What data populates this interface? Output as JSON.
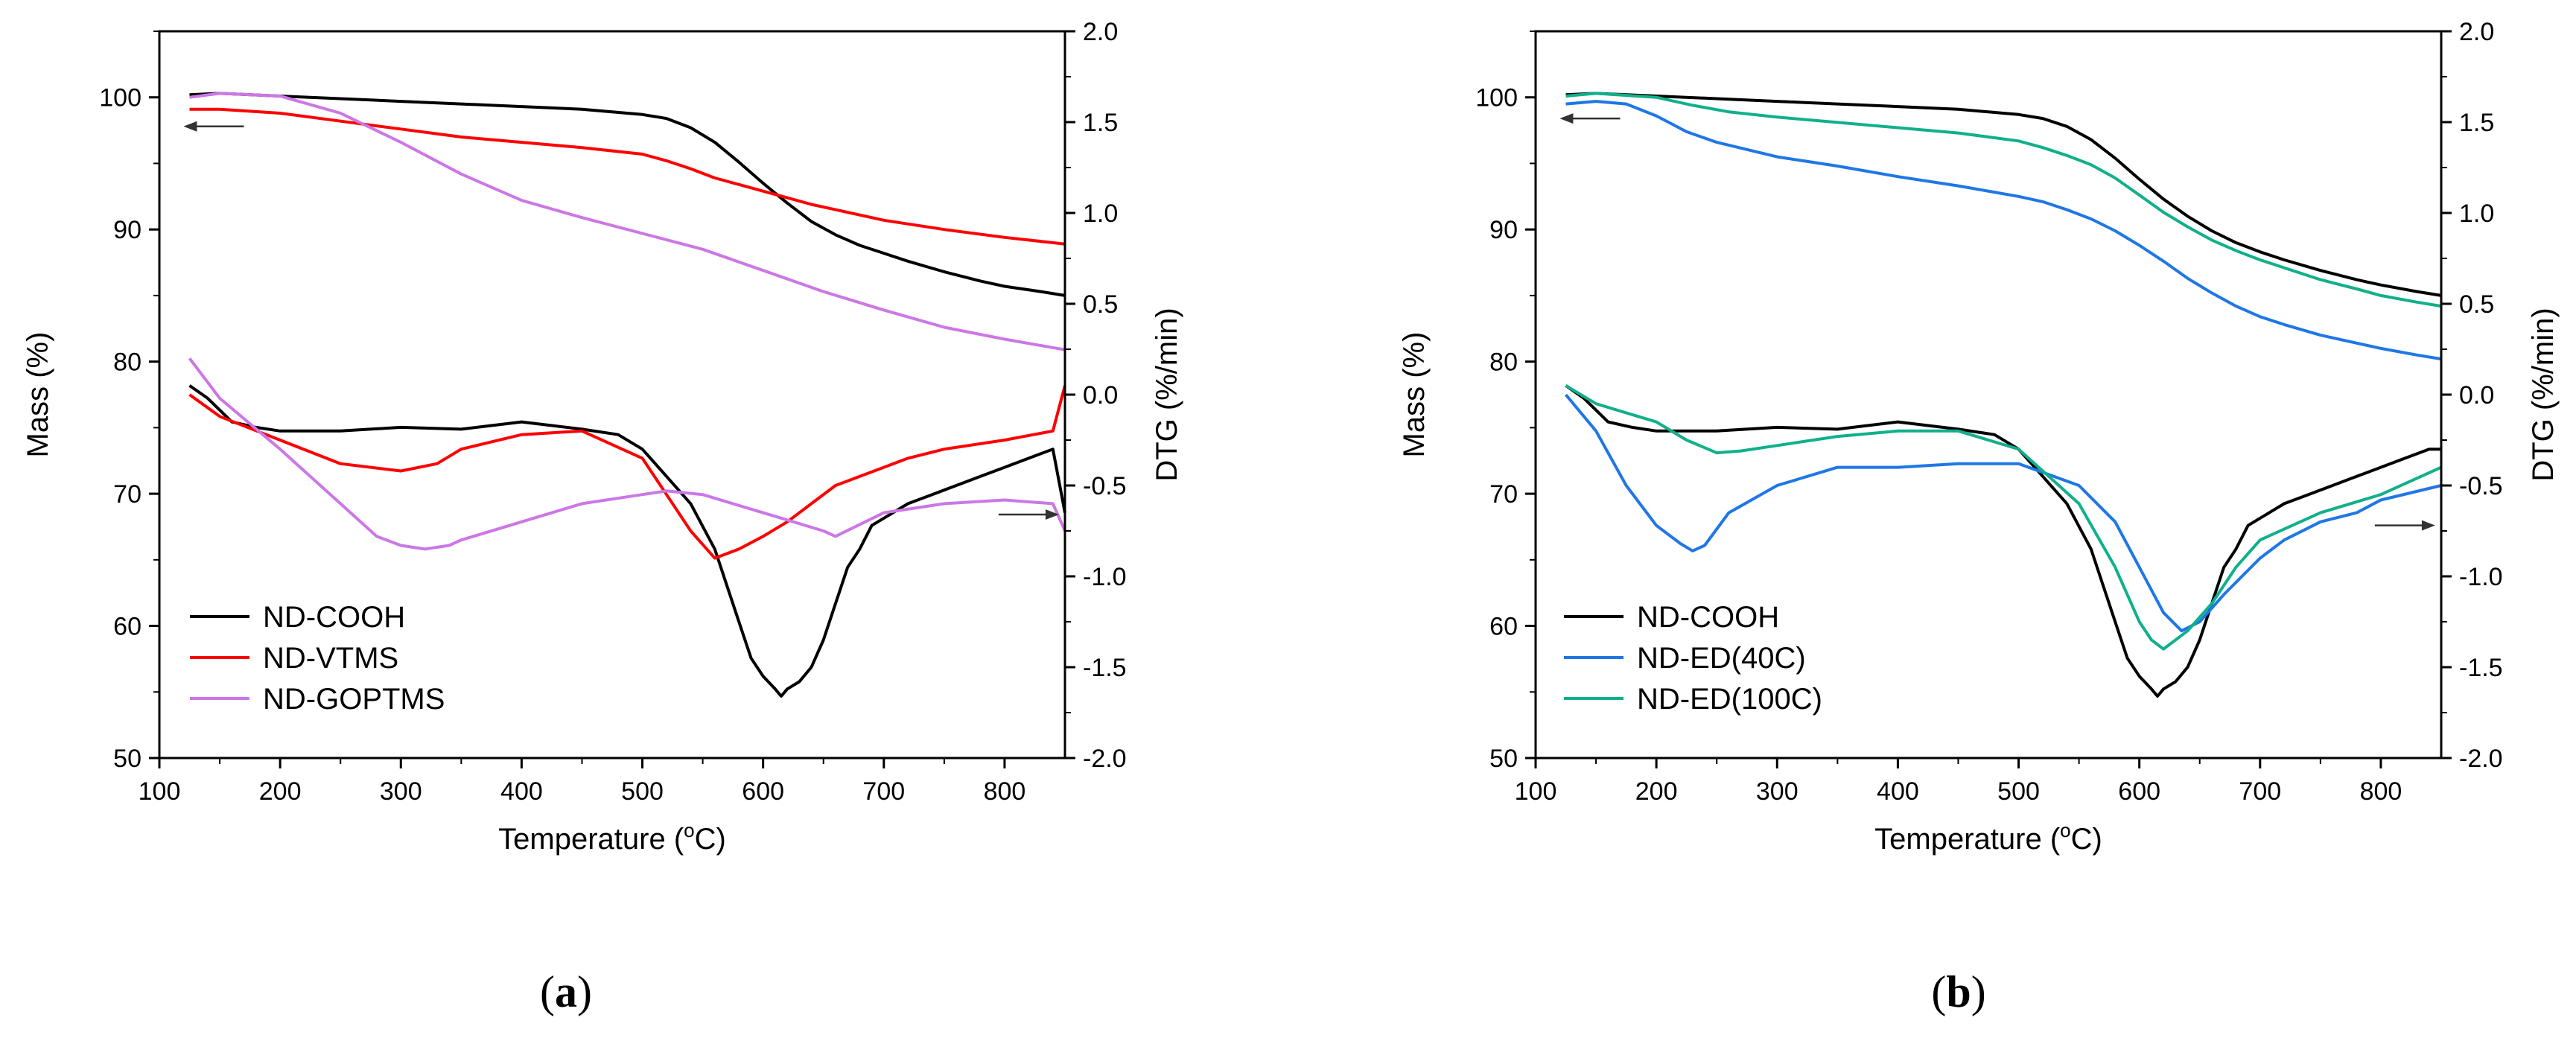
{
  "chart_data": [
    {
      "panel": "a",
      "panel_label_parts": [
        "(",
        "a",
        ")"
      ],
      "type": "line",
      "xlabel": "Temperature (°C)",
      "xlabel_parts": {
        "before": "Temperature (",
        "sup": "o",
        "after": "C)"
      },
      "ylabel_left": "Mass (%)",
      "ylabel_right": "DTG (%/min)",
      "xlim": [
        100,
        850
      ],
      "ylim_left": [
        50,
        105
      ],
      "ylim_right": [
        -2.0,
        2.0
      ],
      "x_ticks": [
        "100",
        "200",
        "300",
        "400",
        "500",
        "600",
        "700",
        "800"
      ],
      "y_left_ticks": [
        "50",
        "60",
        "70",
        "80",
        "90",
        "100"
      ],
      "y_right_ticks": [
        "-2.0",
        "-1.5",
        "-1.0",
        "-0.5",
        "0.0",
        "0.5",
        "1.0",
        "1.5",
        "2.0"
      ],
      "arrow_left": {
        "x_from": 170,
        "x_to": 120,
        "y": 97.8
      },
      "arrow_right": {
        "x_from": 795,
        "x_to": 845,
        "y": -0.66
      },
      "legend_entries": [
        "ND-COOH",
        "ND-VTMS",
        "ND-GOPTMS"
      ],
      "series": [
        {
          "name": "ND-COOH",
          "axis": "left",
          "color": "#000000",
          "x": [
            125,
            150,
            200,
            250,
            300,
            350,
            400,
            450,
            500,
            520,
            540,
            560,
            580,
            600,
            620,
            640,
            660,
            680,
            700,
            720,
            750,
            780,
            800,
            830,
            850
          ],
          "y": [
            100.2,
            100.3,
            100.1,
            99.9,
            99.7,
            99.5,
            99.3,
            99.1,
            98.7,
            98.4,
            97.7,
            96.6,
            95.1,
            93.5,
            92.0,
            90.6,
            89.6,
            88.8,
            88.2,
            87.6,
            86.8,
            86.1,
            85.7,
            85.3,
            85.0
          ]
        },
        {
          "name": "ND-VTMS",
          "axis": "left",
          "color": "#ff0000",
          "x": [
            125,
            150,
            200,
            250,
            300,
            350,
            400,
            450,
            500,
            520,
            540,
            560,
            580,
            600,
            620,
            640,
            660,
            680,
            700,
            750,
            800,
            850
          ],
          "y": [
            99.1,
            99.1,
            98.8,
            98.2,
            97.6,
            97.0,
            96.6,
            96.2,
            95.7,
            95.2,
            94.6,
            93.9,
            93.4,
            92.9,
            92.4,
            91.9,
            91.5,
            91.1,
            90.7,
            90.0,
            89.4,
            88.9
          ]
        },
        {
          "name": "ND-GOPTMS",
          "axis": "left",
          "color": "#cc77e6",
          "x": [
            125,
            150,
            200,
            250,
            300,
            350,
            400,
            450,
            500,
            550,
            600,
            650,
            700,
            750,
            800,
            850
          ],
          "y": [
            100.0,
            100.3,
            100.1,
            98.8,
            96.6,
            94.2,
            92.2,
            90.9,
            89.7,
            88.5,
            86.9,
            85.3,
            83.9,
            82.6,
            81.7,
            80.9
          ]
        },
        {
          "name": "ND-COOH",
          "axis": "right",
          "color": "#000000",
          "legend": true,
          "x": [
            125,
            140,
            160,
            180,
            200,
            250,
            300,
            350,
            400,
            450,
            480,
            500,
            520,
            540,
            560,
            570,
            580,
            590,
            600,
            610,
            615,
            620,
            630,
            640,
            650,
            660,
            670,
            680,
            690,
            700,
            720,
            740,
            760,
            780,
            800,
            820,
            840,
            850
          ],
          "y": [
            0.05,
            -0.02,
            -0.15,
            -0.18,
            -0.2,
            -0.2,
            -0.18,
            -0.19,
            -0.15,
            -0.19,
            -0.22,
            -0.3,
            -0.45,
            -0.6,
            -0.85,
            -1.05,
            -1.25,
            -1.45,
            -1.55,
            -1.62,
            -1.66,
            -1.62,
            -1.58,
            -1.5,
            -1.35,
            -1.15,
            -0.95,
            -0.85,
            -0.72,
            -0.68,
            -0.6,
            -0.55,
            -0.5,
            -0.45,
            -0.4,
            -0.35,
            -0.3,
            -0.65
          ]
        },
        {
          "name": "ND-VTMS",
          "axis": "right",
          "color": "#ff0000",
          "legend": true,
          "x": [
            125,
            150,
            200,
            250,
            300,
            330,
            350,
            400,
            450,
            500,
            520,
            540,
            560,
            580,
            600,
            620,
            640,
            660,
            680,
            700,
            720,
            750,
            800,
            840,
            850
          ],
          "y": [
            0.0,
            -0.12,
            -0.25,
            -0.38,
            -0.42,
            -0.38,
            -0.3,
            -0.22,
            -0.2,
            -0.35,
            -0.55,
            -0.75,
            -0.9,
            -0.85,
            -0.78,
            -0.7,
            -0.6,
            -0.5,
            -0.45,
            -0.4,
            -0.35,
            -0.3,
            -0.25,
            -0.2,
            0.05
          ]
        },
        {
          "name": "ND-GOPTMS",
          "axis": "right",
          "color": "#cc77e6",
          "legend": true,
          "x": [
            125,
            150,
            200,
            250,
            280,
            300,
            320,
            340,
            350,
            400,
            450,
            500,
            520,
            550,
            600,
            650,
            660,
            700,
            750,
            800,
            840,
            850
          ],
          "y": [
            0.2,
            -0.02,
            -0.3,
            -0.6,
            -0.78,
            -0.83,
            -0.85,
            -0.83,
            -0.8,
            -0.7,
            -0.6,
            -0.55,
            -0.53,
            -0.55,
            -0.65,
            -0.75,
            -0.78,
            -0.65,
            -0.6,
            -0.58,
            -0.6,
            -0.75
          ]
        }
      ]
    },
    {
      "panel": "b",
      "panel_label_parts": [
        "(",
        "b",
        ")"
      ],
      "type": "line",
      "xlabel": "Temperature (°C)",
      "xlabel_parts": {
        "before": "Temperature (",
        "sup": "o",
        "after": "C)"
      },
      "ylabel_left": "Mass (%)",
      "ylabel_right": "DTG (%/min)",
      "xlim": [
        100,
        850
      ],
      "ylim_left": [
        50,
        105
      ],
      "ylim_right": [
        -2.0,
        2.0
      ],
      "x_ticks": [
        "100",
        "200",
        "300",
        "400",
        "500",
        "600",
        "700",
        "800"
      ],
      "y_left_ticks": [
        "50",
        "60",
        "70",
        "80",
        "90",
        "100"
      ],
      "y_right_ticks": [
        "-2.0",
        "-1.5",
        "-1.0",
        "-0.5",
        "0.0",
        "0.5",
        "1.0",
        "1.5",
        "2.0"
      ],
      "arrow_left": {
        "x_from": 170,
        "x_to": 120,
        "y": 98.4
      },
      "arrow_right": {
        "x_from": 795,
        "x_to": 845,
        "y": -0.72
      },
      "legend_entries": [
        "ND-COOH",
        "ND-ED(40C)",
        "ND-ED(100C)"
      ],
      "series": [
        {
          "name": "ND-COOH",
          "axis": "left",
          "color": "#000000",
          "x": [
            125,
            150,
            200,
            250,
            300,
            350,
            400,
            450,
            500,
            520,
            540,
            560,
            580,
            600,
            620,
            640,
            660,
            680,
            700,
            720,
            750,
            780,
            800,
            830,
            850
          ],
          "y": [
            100.2,
            100.3,
            100.1,
            99.9,
            99.7,
            99.5,
            99.3,
            99.1,
            98.7,
            98.4,
            97.8,
            96.8,
            95.4,
            93.8,
            92.3,
            91.0,
            89.9,
            89.0,
            88.3,
            87.7,
            86.9,
            86.2,
            85.8,
            85.3,
            85.0
          ]
        },
        {
          "name": "ND-ED(40C)",
          "axis": "left",
          "color": "#1f77e6",
          "x": [
            125,
            150,
            175,
            200,
            225,
            250,
            300,
            350,
            400,
            450,
            500,
            520,
            540,
            560,
            580,
            600,
            620,
            640,
            660,
            680,
            700,
            720,
            750,
            780,
            800,
            830,
            850
          ],
          "y": [
            99.5,
            99.7,
            99.5,
            98.6,
            97.4,
            96.6,
            95.5,
            94.8,
            94.0,
            93.3,
            92.5,
            92.1,
            91.5,
            90.8,
            89.9,
            88.8,
            87.6,
            86.3,
            85.2,
            84.2,
            83.4,
            82.8,
            82.0,
            81.4,
            81.0,
            80.5,
            80.2
          ]
        },
        {
          "name": "ND-ED(100C)",
          "axis": "left",
          "color": "#10b08a",
          "x": [
            125,
            150,
            200,
            230,
            260,
            300,
            350,
            400,
            450,
            500,
            520,
            540,
            560,
            580,
            600,
            620,
            640,
            660,
            680,
            700,
            720,
            750,
            780,
            800,
            830,
            850
          ],
          "y": [
            100.1,
            100.3,
            100.0,
            99.4,
            98.9,
            98.5,
            98.1,
            97.7,
            97.3,
            96.7,
            96.2,
            95.6,
            94.9,
            93.9,
            92.6,
            91.3,
            90.2,
            89.2,
            88.4,
            87.7,
            87.1,
            86.2,
            85.5,
            85.0,
            84.5,
            84.2
          ]
        },
        {
          "name": "ND-COOH",
          "axis": "right",
          "color": "#000000",
          "legend": true,
          "x": [
            125,
            140,
            160,
            180,
            200,
            250,
            300,
            350,
            400,
            450,
            480,
            500,
            520,
            540,
            560,
            570,
            580,
            590,
            600,
            610,
            615,
            620,
            630,
            640,
            650,
            660,
            670,
            680,
            690,
            700,
            720,
            740,
            760,
            780,
            800,
            820,
            840,
            850
          ],
          "y": [
            0.05,
            -0.02,
            -0.15,
            -0.18,
            -0.2,
            -0.2,
            -0.18,
            -0.19,
            -0.15,
            -0.19,
            -0.22,
            -0.3,
            -0.45,
            -0.6,
            -0.85,
            -1.05,
            -1.25,
            -1.45,
            -1.55,
            -1.62,
            -1.66,
            -1.62,
            -1.58,
            -1.5,
            -1.35,
            -1.15,
            -0.95,
            -0.85,
            -0.72,
            -0.68,
            -0.6,
            -0.55,
            -0.5,
            -0.45,
            -0.4,
            -0.35,
            -0.3,
            -0.3
          ]
        },
        {
          "name": "ND-ED(40C)",
          "axis": "right",
          "color": "#1f77e6",
          "legend": true,
          "x": [
            125,
            150,
            175,
            200,
            220,
            230,
            240,
            260,
            300,
            350,
            400,
            450,
            500,
            550,
            580,
            600,
            620,
            635,
            650,
            670,
            700,
            720,
            750,
            780,
            800,
            850
          ],
          "y": [
            0.0,
            -0.2,
            -0.5,
            -0.72,
            -0.82,
            -0.86,
            -0.83,
            -0.65,
            -0.5,
            -0.4,
            -0.4,
            -0.38,
            -0.38,
            -0.5,
            -0.7,
            -0.95,
            -1.2,
            -1.3,
            -1.25,
            -1.1,
            -0.9,
            -0.8,
            -0.7,
            -0.65,
            -0.58,
            -0.5
          ]
        },
        {
          "name": "ND-ED(100C)",
          "axis": "right",
          "color": "#10b08a",
          "legend": true,
          "x": [
            125,
            150,
            175,
            200,
            225,
            250,
            270,
            300,
            350,
            400,
            450,
            500,
            550,
            580,
            600,
            610,
            620,
            640,
            660,
            680,
            700,
            750,
            800,
            850
          ],
          "y": [
            0.05,
            -0.05,
            -0.1,
            -0.15,
            -0.25,
            -0.32,
            -0.31,
            -0.28,
            -0.23,
            -0.2,
            -0.2,
            -0.3,
            -0.6,
            -0.95,
            -1.25,
            -1.35,
            -1.4,
            -1.3,
            -1.15,
            -0.95,
            -0.8,
            -0.65,
            -0.55,
            -0.4
          ]
        }
      ]
    }
  ]
}
